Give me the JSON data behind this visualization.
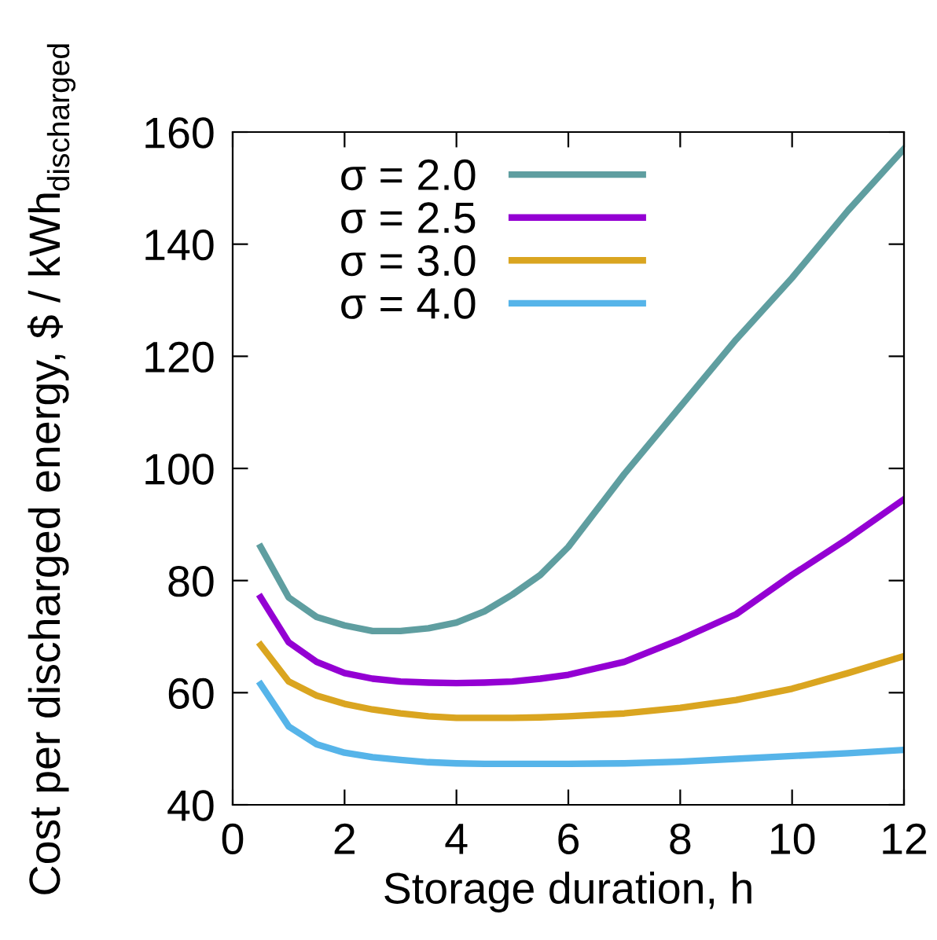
{
  "chart_data": {
    "type": "line",
    "xlabel": "Storage duration, h",
    "ylabel": "Cost per discharged energy, $ / kWh$_{discharged}$",
    "x": [
      0.5,
      1,
      1.5,
      2,
      2.5,
      3,
      3.5,
      4,
      4.5,
      5,
      5.5,
      6,
      7,
      8,
      9,
      10,
      11,
      12
    ],
    "series": [
      {
        "name": "σ = 2.0",
        "color": "#5f9ea0",
        "values": [
          86,
          77,
          73.5,
          72,
          71,
          71,
          71.5,
          72.5,
          74.5,
          77.5,
          81,
          86,
          99,
          111,
          123,
          134,
          146,
          157
        ]
      },
      {
        "name": "σ = 2.5",
        "color": "#9400d3",
        "values": [
          77,
          69,
          65.5,
          63.5,
          62.5,
          62,
          61.8,
          61.7,
          61.8,
          62,
          62.5,
          63.2,
          65.5,
          69.5,
          74,
          81,
          87.5,
          94.5
        ]
      },
      {
        "name": "σ = 3.0",
        "color": "#daa520",
        "values": [
          68.5,
          62,
          59.5,
          58,
          57,
          56.3,
          55.8,
          55.5,
          55.5,
          55.5,
          55.6,
          55.8,
          56.3,
          57.3,
          58.7,
          60.7,
          63.5,
          66.5
        ]
      },
      {
        "name": "σ = 4.0",
        "color": "#56b4e9",
        "values": [
          61.5,
          54,
          50.8,
          49.3,
          48.5,
          48,
          47.6,
          47.4,
          47.3,
          47.3,
          47.3,
          47.3,
          47.4,
          47.7,
          48.2,
          48.7,
          49.2,
          49.8
        ]
      }
    ],
    "xlim": [
      0,
      12
    ],
    "xticks": [
      0,
      2,
      4,
      6,
      8,
      10,
      12
    ],
    "ylim": [
      40,
      160
    ],
    "yticks": [
      40,
      60,
      80,
      100,
      120,
      140,
      160
    ],
    "grid": false,
    "legend": "top left",
    "marker": "none",
    "line_style": "solid"
  }
}
